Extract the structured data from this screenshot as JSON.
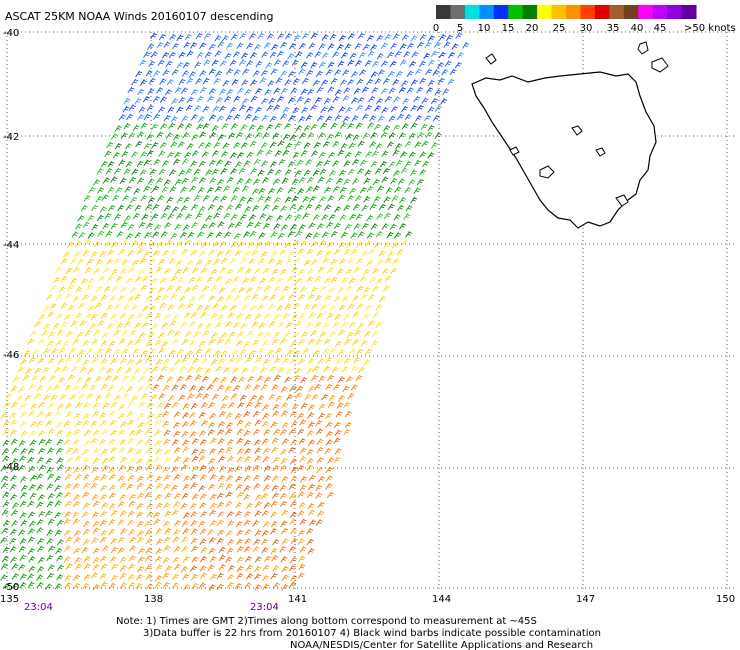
{
  "title": "ASCAT 25KM NOAA Winds 20160107 descending",
  "colorbar": {
    "labels": [
      "0",
      "5",
      "10",
      "15",
      "20",
      "25",
      "30",
      "35",
      "40",
      "45",
      ">50 knots"
    ],
    "colors": [
      "#3a3a3a",
      "#6e6e6e",
      "#00e0e0",
      "#0090ff",
      "#0030ff",
      "#00c000",
      "#008000",
      "#ffff00",
      "#ffc000",
      "#ff9000",
      "#ff4000",
      "#e00000",
      "#a06030",
      "#704020",
      "#ff00ff",
      "#c000ff",
      "#9000e0",
      "#6000a0"
    ]
  },
  "axes": {
    "lat_labels": [
      "-40",
      "-42",
      "-44",
      "-46",
      "-48",
      "-50"
    ],
    "lon_labels": [
      "135",
      "138",
      "141",
      "144",
      "147",
      "150"
    ]
  },
  "times": [
    "23:04",
    "23:04"
  ],
  "notes": [
    "Note: 1) Times are GMT 2)Times along bottom correspond to measurement at ~45S",
    "3)Data buffer is 22 hrs from 20160107 4) Black wind barbs indicate possible contamination",
    "NOAA/NESDIS/Center for Satellite Applications and Research"
  ],
  "map_data": {
    "region": "Southern Ocean south-west of Tasmania",
    "lat_range": [
      -50,
      -40
    ],
    "lon_range": [
      135,
      150
    ],
    "land": [
      "Tasmania"
    ],
    "wind_bands": [
      {
        "lat_range": [
          -42,
          -40
        ],
        "speed": "10-15 knots",
        "color": "#0050ff"
      },
      {
        "lat_range": [
          -44,
          -42
        ],
        "speed": "15-20 knots",
        "color": "#00b000"
      },
      {
        "lat_range": [
          -47,
          -44
        ],
        "speed": "20-25 knots",
        "color": "#ffe000"
      },
      {
        "lat_range": [
          -50,
          -47
        ],
        "speed": "25-30 knots",
        "color": "#ff8000"
      }
    ]
  }
}
